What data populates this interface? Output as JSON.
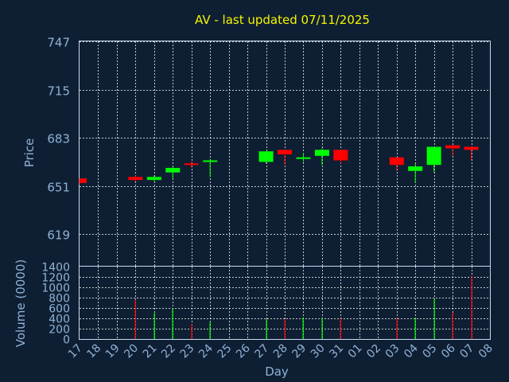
{
  "chart_data": {
    "type": "candlestick",
    "title": "AV - last updated 07/11/2025",
    "price_axis": {
      "label": "Price",
      "ylim": [
        598,
        747
      ],
      "ticks": [
        619,
        651,
        683,
        715,
        747
      ]
    },
    "volume_axis": {
      "label": "Volume (0000)",
      "ylim": [
        0,
        1400
      ],
      "ticks": [
        0,
        200,
        400,
        600,
        800,
        1000,
        1200,
        1400
      ]
    },
    "xlabel": "Day",
    "x_ticks": [
      "17",
      "18",
      "19",
      "20",
      "21",
      "22",
      "23",
      "24",
      "25",
      "26",
      "27",
      "28",
      "29",
      "30",
      "31",
      "01",
      "02",
      "03",
      "04",
      "05",
      "06",
      "07",
      "08"
    ],
    "grid": true,
    "colors": {
      "up": "#00ff00",
      "down": "#ff0000",
      "background": "#0f1f33",
      "grid": "#ffffff",
      "text": "#8fb2d6",
      "title": "#f5f500"
    },
    "candles": [
      {
        "day": "17",
        "open": 656,
        "high": 656,
        "low": 652,
        "close": 653,
        "volume": 0
      },
      {
        "day": "20",
        "open": 657,
        "high": 658,
        "low": 654,
        "close": 655,
        "volume": 760
      },
      {
        "day": "21",
        "open": 655,
        "high": 658,
        "low": 654,
        "close": 657,
        "volume": 500
      },
      {
        "day": "22",
        "open": 660,
        "high": 664,
        "low": 656,
        "close": 663,
        "volume": 600
      },
      {
        "day": "23",
        "open": 666,
        "high": 667,
        "low": 663,
        "close": 665,
        "volume": 290
      },
      {
        "day": "24",
        "open": 667,
        "high": 669,
        "low": 657,
        "close": 668,
        "volume": 330
      },
      {
        "day": "27",
        "open": 667,
        "high": 674,
        "low": 666,
        "close": 674,
        "volume": 390
      },
      {
        "day": "28",
        "open": 675,
        "high": 675,
        "low": 665,
        "close": 672,
        "volume": 380
      },
      {
        "day": "29",
        "open": 670,
        "high": 673,
        "low": 667,
        "close": 670,
        "volume": 420
      },
      {
        "day": "30",
        "open": 671,
        "high": 676,
        "low": 665,
        "close": 675,
        "volume": 410
      },
      {
        "day": "31",
        "open": 675,
        "high": 675,
        "low": 666,
        "close": 668,
        "volume": 400
      },
      {
        "day": "03",
        "open": 670,
        "high": 670,
        "low": 661,
        "close": 665,
        "volume": 410
      },
      {
        "day": "04",
        "open": 661,
        "high": 666,
        "low": 653,
        "close": 664,
        "volume": 410
      },
      {
        "day": "05",
        "open": 665,
        "high": 677,
        "low": 660,
        "close": 677,
        "volume": 780
      },
      {
        "day": "06",
        "open": 678,
        "high": 678,
        "low": 671,
        "close": 676,
        "volume": 510
      },
      {
        "day": "07",
        "open": 677,
        "high": 677,
        "low": 668,
        "close": 675,
        "volume": 1220
      }
    ]
  }
}
